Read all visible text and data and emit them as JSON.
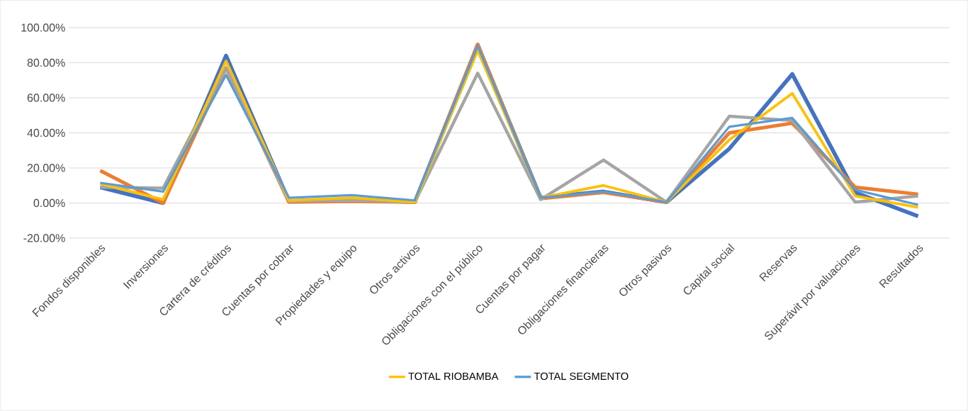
{
  "chart_data": {
    "type": "line",
    "categories": [
      "Fondos disponibles",
      "Inversiones",
      "Cartera de créditos",
      "Cuentas por cobrar",
      "Propiedades y equipo",
      "Otros activos",
      "Obligaciones con el público",
      "Cuentas por pagar",
      "Obligaciones financieras",
      "Otros pasivos",
      "Capital social",
      "Reservas",
      "Superávit por valuaciones",
      "Resultados"
    ],
    "series": [
      {
        "color": "#4472c4",
        "values": [
          9,
          0,
          84,
          1,
          2,
          0.5,
          90,
          3,
          6.5,
          0.5,
          31,
          73.5,
          6,
          -7.5
        ]
      },
      {
        "color": "#ed7d31",
        "values": [
          18.5,
          0,
          77,
          0.5,
          1,
          0.5,
          90.5,
          2.5,
          6,
          0.5,
          40,
          45.5,
          9,
          5
        ]
      },
      {
        "color": "#a5a5a5",
        "values": [
          9,
          8.5,
          77,
          1,
          1.5,
          0.5,
          74,
          2,
          24.5,
          0.5,
          49.5,
          47,
          0.5,
          4
        ]
      },
      {
        "name": "TOTAL RIOBAMBA",
        "color": "#ffc000",
        "values": [
          11,
          2,
          81,
          1.5,
          3,
          0.5,
          87,
          3,
          10,
          0.5,
          36,
          62.5,
          4,
          -2.5
        ]
      },
      {
        "name": "TOTAL SEGMENTO",
        "color": "#5b9bd5",
        "values": [
          11.5,
          6.5,
          73,
          3,
          4.5,
          1.5,
          89.5,
          3,
          6.5,
          0.5,
          43.5,
          48.5,
          7.5,
          -1
        ]
      }
    ],
    "ylim": [
      -20,
      100
    ],
    "yticks": [
      {
        "value": -20,
        "label": "-20.00%"
      },
      {
        "value": 0,
        "label": "0.00%"
      },
      {
        "value": 20,
        "label": "20.00%"
      },
      {
        "value": 40,
        "label": "40.00%"
      },
      {
        "value": 60,
        "label": "60.00%"
      },
      {
        "value": 80,
        "label": "80.00%"
      },
      {
        "value": 100,
        "label": "100.00%"
      }
    ],
    "grid": "y",
    "legend": "bottom",
    "marker": "none",
    "line_style": "solid"
  }
}
